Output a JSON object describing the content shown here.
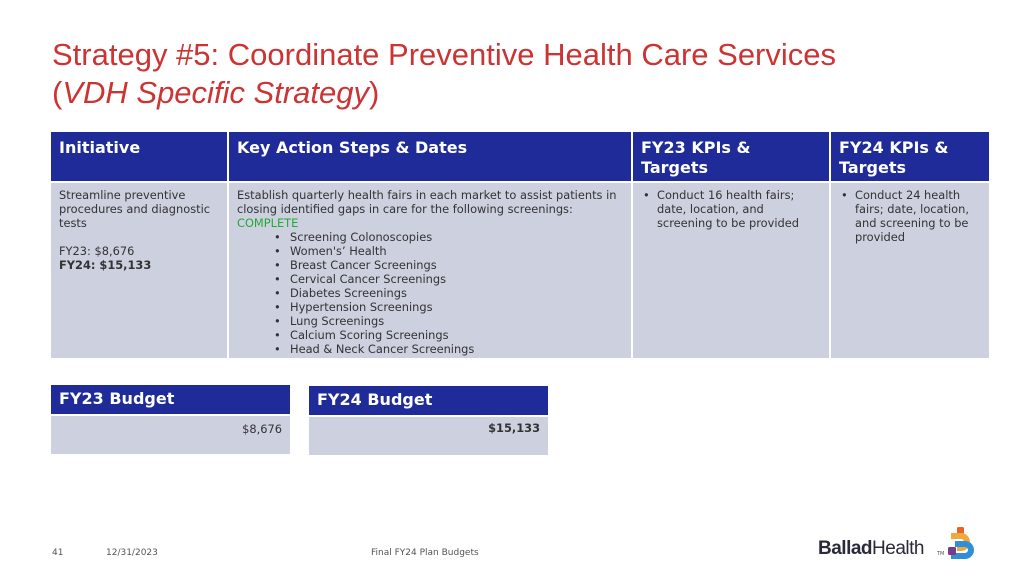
{
  "title": {
    "line1": "Strategy #5:  Coordinate Preventive Health Care Services",
    "line2_open": "(",
    "line2_italic": "VDH Specific Strategy",
    "line2_close": ")"
  },
  "table": {
    "headers": [
      "Initiative",
      "Key Action Steps & Dates",
      "FY23 KPIs & Targets",
      "FY24 KPIs & Targets"
    ],
    "initiative": {
      "name": "Streamline preventive procedures and diagnostic tests",
      "fy23": "FY23: $8,676",
      "fy24": "FY24: $15,133"
    },
    "action": {
      "text": "Establish quarterly health fairs in each market to assist patients in closing identified gaps in care for the following screenings:",
      "status": "COMPLETE",
      "screenings": [
        "Screening Colonoscopies",
        "Women's’ Health",
        "Breast Cancer Screenings",
        "Cervical Cancer Screenings",
        "Diabetes Screenings",
        "Hypertension Screenings",
        "Lung Screenings",
        "Calcium Scoring Screenings",
        "Head & Neck Cancer Screenings"
      ]
    },
    "fy23_kpi": "Conduct 16 health fairs; date, location, and screening to be provided",
    "fy24_kpi": "Conduct 24 health fairs; date, location, and screening to be provided"
  },
  "budgets": {
    "fy23": {
      "label": "FY23 Budget",
      "value": "$8,676"
    },
    "fy24": {
      "label": "FY24 Budget",
      "value": "$15,133"
    }
  },
  "footer": {
    "page_number": "41",
    "date": "12/31/2023",
    "doc_title": "Final FY24 Plan Budgets"
  },
  "logo": {
    "text_ballad": "Ballad",
    "text_health": "Health",
    "tm": "TM"
  },
  "colors": {
    "title": "#cc3333",
    "header_bg": "#1e2b99",
    "cell_bg": "#cdd0df",
    "complete": "#22aa33"
  }
}
